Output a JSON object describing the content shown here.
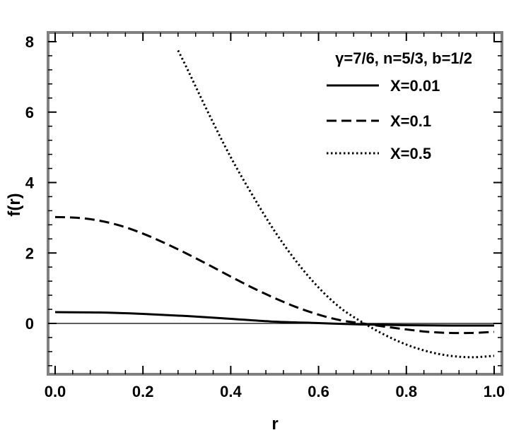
{
  "chart_data": {
    "type": "line",
    "title": "",
    "xlabel": "r",
    "ylabel": "f(r)",
    "xlim": [
      0,
      1
    ],
    "ylim": [
      -1.4,
      8.3
    ],
    "xticks": [
      "0.0",
      "0.2",
      "0.4",
      "0.6",
      "0.8",
      "1.0"
    ],
    "yticks": [
      "0",
      "2",
      "4",
      "6",
      "8"
    ],
    "annotation": "γ=7/6, n=5/3, b=1/2",
    "legend_position": "top-right",
    "zero_line": true,
    "grid": false,
    "frame_color": "#808080",
    "series": [
      {
        "name": "X=0.01",
        "style": "solid",
        "color": "#000000",
        "x": [
          0,
          0.1,
          0.2,
          0.3,
          0.4,
          0.5,
          0.6,
          0.7,
          0.8,
          0.9,
          1.0
        ],
        "y": [
          0.32,
          0.31,
          0.27,
          0.21,
          0.13,
          0.05,
          0.01,
          -0.03,
          -0.05,
          -0.06,
          -0.06
        ]
      },
      {
        "name": "X=0.1",
        "style": "dashed",
        "color": "#000000",
        "x": [
          0,
          0.05,
          0.1,
          0.15,
          0.2,
          0.25,
          0.3,
          0.35,
          0.4,
          0.45,
          0.5,
          0.55,
          0.6,
          0.65,
          0.7,
          0.75,
          0.8,
          0.85,
          0.9,
          0.95,
          1.0
        ],
        "y": [
          3.02,
          3.0,
          2.92,
          2.77,
          2.55,
          2.28,
          1.98,
          1.66,
          1.33,
          1.01,
          0.72,
          0.46,
          0.25,
          0.09,
          0.0,
          -0.09,
          -0.17,
          -0.24,
          -0.27,
          -0.27,
          -0.24
        ]
      },
      {
        "name": "X=0.5",
        "style": "dotted",
        "color": "#000000",
        "x": [
          0.28,
          0.3,
          0.35,
          0.4,
          0.45,
          0.5,
          0.55,
          0.6,
          0.65,
          0.7,
          0.75,
          0.8,
          0.85,
          0.9,
          0.95,
          1.0
        ],
        "y": [
          7.75,
          7.25,
          5.95,
          4.72,
          3.63,
          2.62,
          1.75,
          1.02,
          0.44,
          0.03,
          -0.32,
          -0.6,
          -0.8,
          -0.92,
          -0.96,
          -0.92
        ]
      }
    ]
  }
}
